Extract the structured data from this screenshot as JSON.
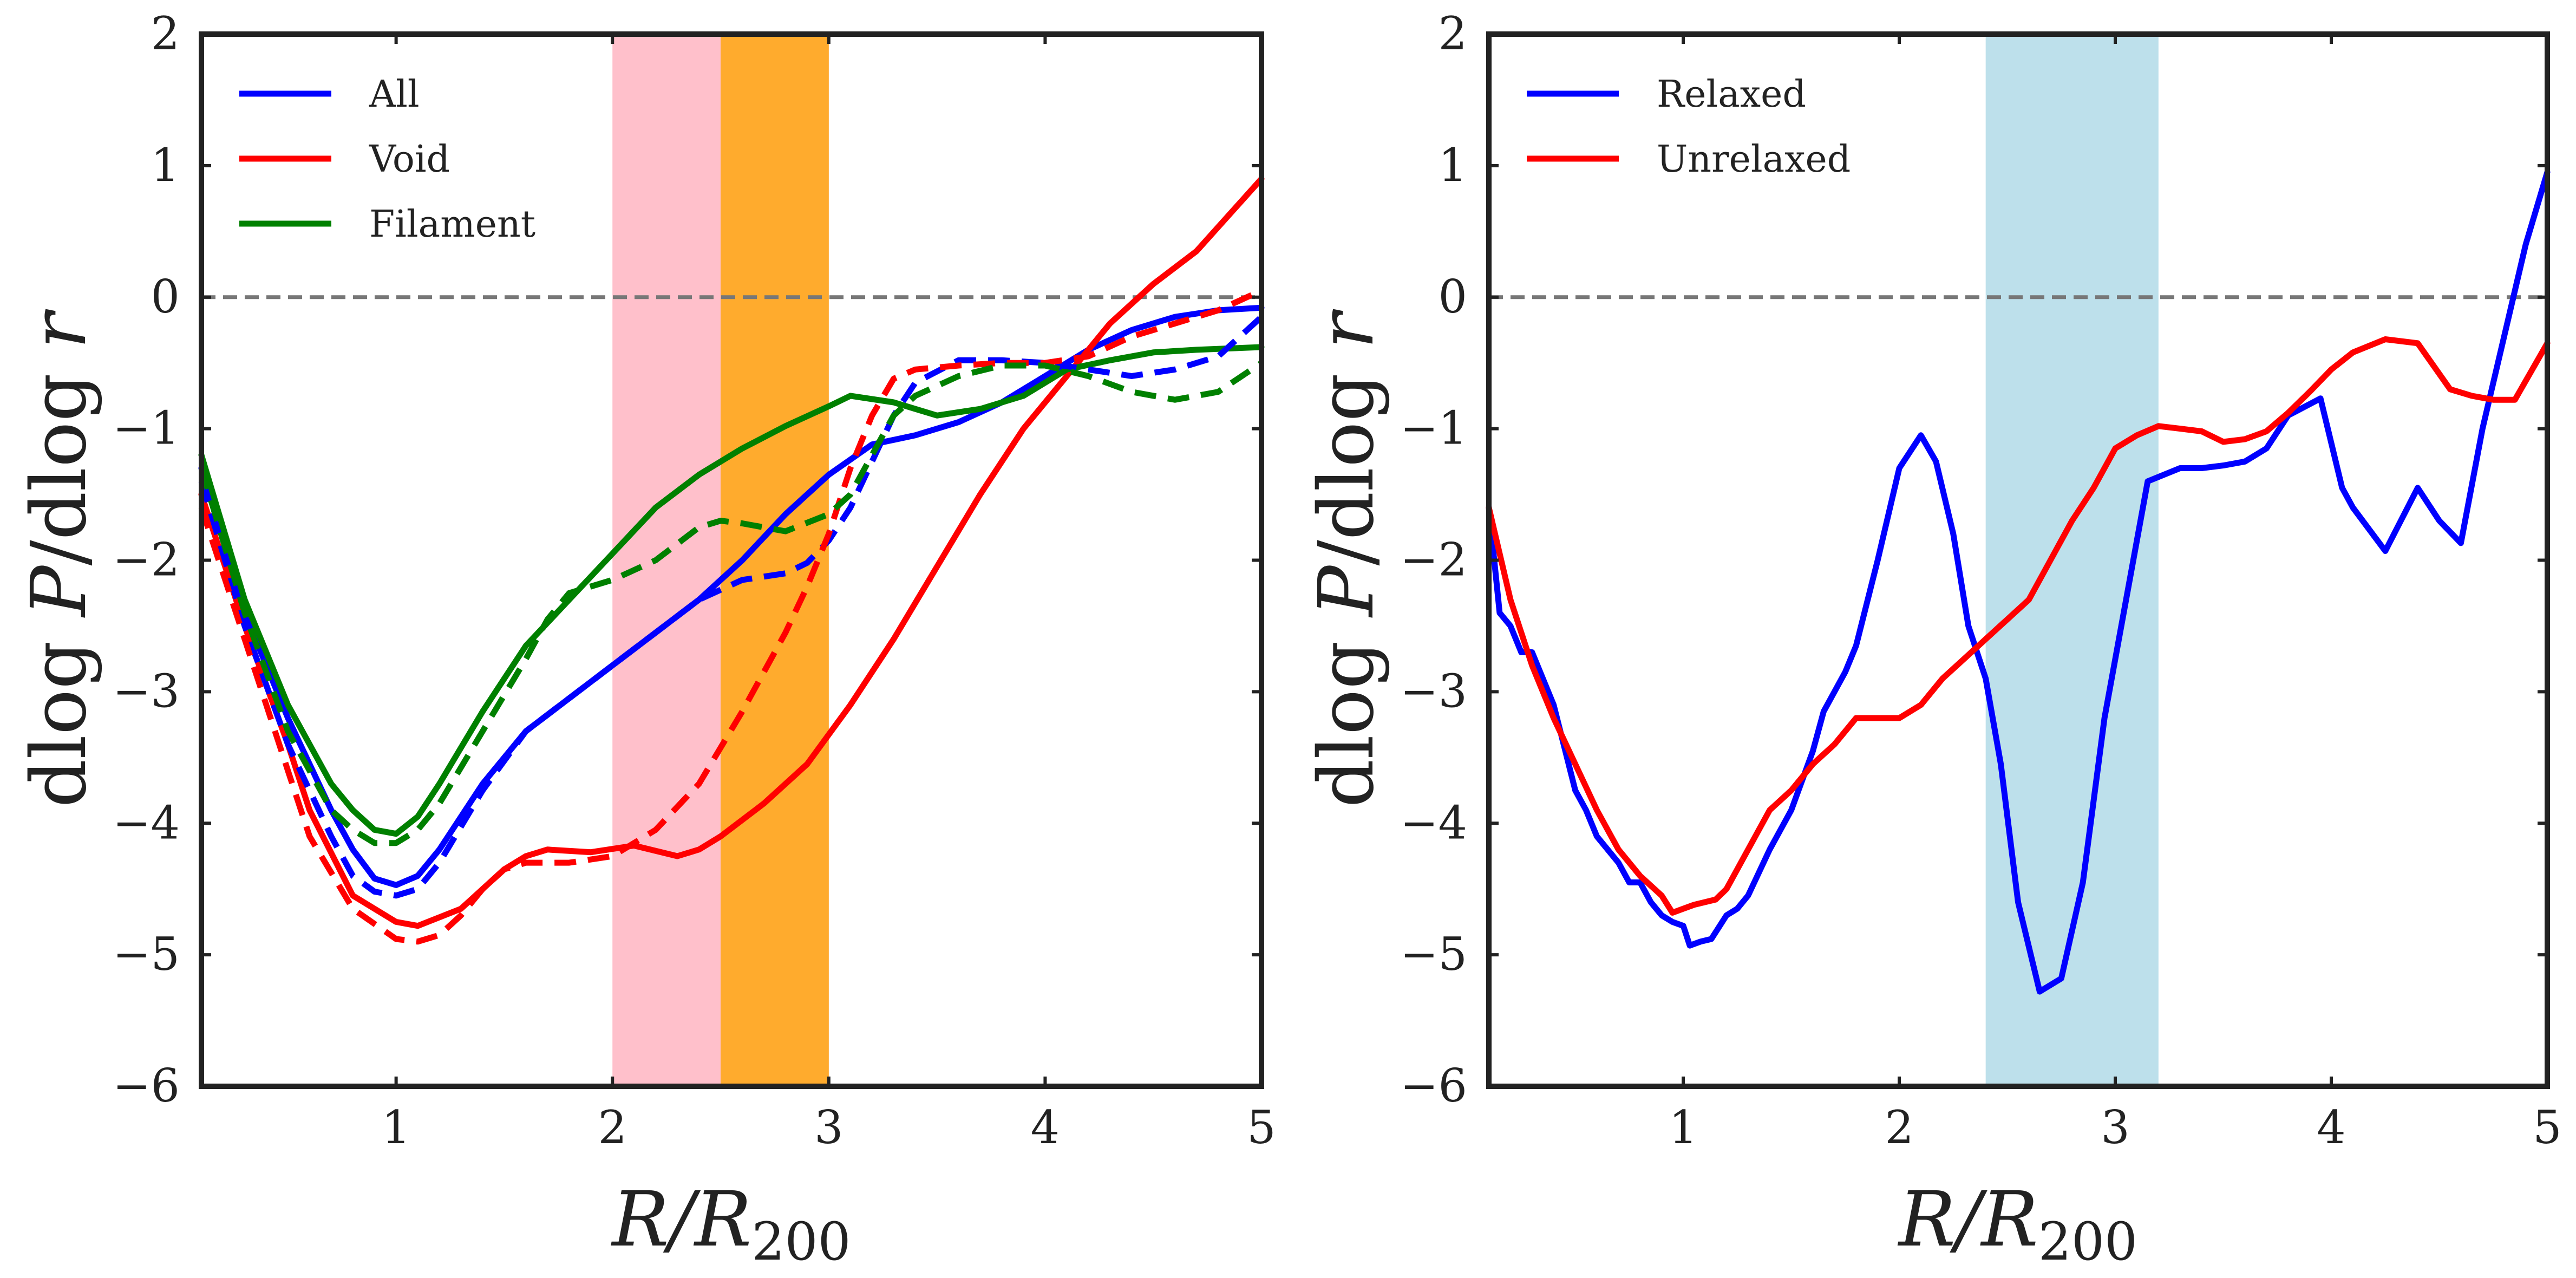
{
  "chart_data": [
    {
      "type": "line",
      "xlim": [
        0.1,
        5
      ],
      "ylim": [
        -6,
        2
      ],
      "xticks": [
        1,
        2,
        3,
        4,
        5
      ],
      "yticks": [
        -6,
        -5,
        -4,
        -3,
        -2,
        -1,
        0,
        1,
        2
      ],
      "xlabel": "R/R200",
      "ylabel": "dlog P/dlog r",
      "ylabel_parts": {
        "a": "dlog ",
        "b": "P",
        "c": "/dlog ",
        "d": "r"
      },
      "xlabel_parts": {
        "a": "R/R",
        "sub": "200"
      },
      "hline": 0,
      "legend_position": "top-left",
      "bands": [
        {
          "x0": 2.0,
          "x1": 3.0,
          "color": "#FFC0CB",
          "opacity": 1.0
        },
        {
          "x0": 2.5,
          "x1": 3.0,
          "color": "#FFA500",
          "opacity": 0.78
        }
      ],
      "series": [
        {
          "name": "All",
          "color": "#0000ff",
          "dashed": false,
          "legend": true,
          "x": [
            0.1,
            0.3,
            0.5,
            0.7,
            0.8,
            0.9,
            1.0,
            1.1,
            1.2,
            1.4,
            1.6,
            1.8,
            2.0,
            2.2,
            2.4,
            2.6,
            2.8,
            3.0,
            3.2,
            3.4,
            3.6,
            3.8,
            4.0,
            4.2,
            4.4,
            4.6,
            4.8,
            5.0
          ],
          "y": [
            -1.3,
            -2.4,
            -3.2,
            -3.9,
            -4.2,
            -4.42,
            -4.47,
            -4.4,
            -4.2,
            -3.7,
            -3.3,
            -3.05,
            -2.8,
            -2.55,
            -2.3,
            -2.0,
            -1.65,
            -1.35,
            -1.12,
            -1.05,
            -0.95,
            -0.8,
            -0.6,
            -0.4,
            -0.25,
            -0.15,
            -0.1,
            -0.08
          ]
        },
        {
          "name": "Void",
          "color": "#ff0000",
          "dashed": false,
          "legend": true,
          "x": [
            0.1,
            0.3,
            0.5,
            0.6,
            0.8,
            1.0,
            1.1,
            1.3,
            1.5,
            1.6,
            1.7,
            1.9,
            2.1,
            2.3,
            2.4,
            2.5,
            2.7,
            2.9,
            3.1,
            3.3,
            3.5,
            3.7,
            3.9,
            4.1,
            4.3,
            4.5,
            4.7,
            5.0
          ],
          "y": [
            -1.5,
            -2.5,
            -3.4,
            -3.9,
            -4.55,
            -4.75,
            -4.78,
            -4.65,
            -4.35,
            -4.25,
            -4.2,
            -4.22,
            -4.17,
            -4.25,
            -4.2,
            -4.1,
            -3.85,
            -3.55,
            -3.1,
            -2.6,
            -2.05,
            -1.5,
            -1.0,
            -0.6,
            -0.2,
            0.1,
            0.35,
            0.9
          ]
        },
        {
          "name": "Filament",
          "color": "#008000",
          "dashed": false,
          "legend": true,
          "x": [
            0.1,
            0.3,
            0.5,
            0.7,
            0.8,
            0.9,
            1.0,
            1.1,
            1.2,
            1.4,
            1.6,
            1.8,
            2.0,
            2.2,
            2.4,
            2.6,
            2.8,
            3.0,
            3.1,
            3.3,
            3.5,
            3.7,
            3.9,
            4.1,
            4.3,
            4.5,
            4.7,
            5.0
          ],
          "y": [
            -1.2,
            -2.3,
            -3.1,
            -3.7,
            -3.9,
            -4.05,
            -4.08,
            -3.95,
            -3.7,
            -3.15,
            -2.65,
            -2.3,
            -1.95,
            -1.6,
            -1.35,
            -1.15,
            -0.98,
            -0.83,
            -0.75,
            -0.8,
            -0.9,
            -0.85,
            -0.75,
            -0.55,
            -0.48,
            -0.42,
            -0.4,
            -0.38
          ]
        },
        {
          "name": "All (dashed)",
          "color": "#0000ff",
          "dashed": true,
          "legend": false,
          "x": [
            0.1,
            0.3,
            0.5,
            0.7,
            0.8,
            0.9,
            1.0,
            1.1,
            1.2,
            1.4,
            1.6,
            1.8,
            2.0,
            2.2,
            2.4,
            2.6,
            2.8,
            2.9,
            3.0,
            3.1,
            3.2,
            3.3,
            3.4,
            3.6,
            3.8,
            4.0,
            4.2,
            4.4,
            4.6,
            4.8,
            5.0
          ],
          "y": [
            -1.4,
            -2.5,
            -3.4,
            -4.1,
            -4.4,
            -4.52,
            -4.55,
            -4.5,
            -4.3,
            -3.75,
            -3.3,
            -3.05,
            -2.8,
            -2.55,
            -2.3,
            -2.15,
            -2.1,
            -2.02,
            -1.85,
            -1.6,
            -1.25,
            -0.9,
            -0.65,
            -0.48,
            -0.48,
            -0.5,
            -0.55,
            -0.6,
            -0.55,
            -0.45,
            -0.15
          ]
        },
        {
          "name": "Void (dashed)",
          "color": "#ff0000",
          "dashed": true,
          "legend": false,
          "x": [
            0.1,
            0.3,
            0.5,
            0.6,
            0.8,
            1.0,
            1.1,
            1.2,
            1.3,
            1.4,
            1.5,
            1.6,
            1.8,
            2.0,
            2.2,
            2.4,
            2.6,
            2.8,
            2.9,
            3.0,
            3.1,
            3.2,
            3.3,
            3.4,
            3.6,
            3.8,
            4.0,
            4.2,
            4.4,
            4.6,
            4.8,
            5.0
          ],
          "y": [
            -1.6,
            -2.6,
            -3.6,
            -4.1,
            -4.65,
            -4.88,
            -4.9,
            -4.85,
            -4.7,
            -4.5,
            -4.35,
            -4.3,
            -4.3,
            -4.25,
            -4.05,
            -3.7,
            -3.15,
            -2.55,
            -2.2,
            -1.8,
            -1.3,
            -0.9,
            -0.62,
            -0.55,
            -0.52,
            -0.5,
            -0.5,
            -0.45,
            -0.3,
            -0.2,
            -0.1,
            0.05
          ]
        },
        {
          "name": "Filament (dashed)",
          "color": "#008000",
          "dashed": true,
          "legend": false,
          "x": [
            0.1,
            0.3,
            0.5,
            0.7,
            0.8,
            0.9,
            1.0,
            1.1,
            1.2,
            1.4,
            1.6,
            1.7,
            1.8,
            2.0,
            2.2,
            2.4,
            2.5,
            2.6,
            2.8,
            3.0,
            3.1,
            3.2,
            3.3,
            3.4,
            3.6,
            3.8,
            4.0,
            4.2,
            4.4,
            4.6,
            4.8,
            5.0
          ],
          "y": [
            -1.3,
            -2.4,
            -3.3,
            -3.9,
            -4.05,
            -4.15,
            -4.15,
            -4.05,
            -3.85,
            -3.3,
            -2.75,
            -2.45,
            -2.25,
            -2.15,
            -2.0,
            -1.75,
            -1.7,
            -1.72,
            -1.78,
            -1.65,
            -1.5,
            -1.2,
            -0.9,
            -0.75,
            -0.6,
            -0.52,
            -0.52,
            -0.6,
            -0.72,
            -0.78,
            -0.72,
            -0.5
          ]
        }
      ]
    },
    {
      "type": "line",
      "xlim": [
        0.1,
        5
      ],
      "ylim": [
        -6,
        2
      ],
      "xticks": [
        1,
        2,
        3,
        4,
        5
      ],
      "yticks": [
        -6,
        -5,
        -4,
        -3,
        -2,
        -1,
        0,
        1,
        2
      ],
      "xlabel": "R/R200",
      "ylabel": "dlog P/dlog r",
      "ylabel_parts": {
        "a": "dlog ",
        "b": "P",
        "c": "/dlog ",
        "d": "r"
      },
      "xlabel_parts": {
        "a": "R/R",
        "sub": "200"
      },
      "hline": 0,
      "legend_position": "top-left",
      "bands": [
        {
          "x0": 2.4,
          "x1": 3.2,
          "color": "#ADD8E6",
          "opacity": 0.8
        }
      ],
      "series": [
        {
          "name": "Relaxed",
          "color": "#0000ff",
          "dashed": false,
          "legend": true,
          "x": [
            0.1,
            0.15,
            0.2,
            0.25,
            0.3,
            0.4,
            0.5,
            0.55,
            0.6,
            0.7,
            0.75,
            0.8,
            0.85,
            0.9,
            0.95,
            1.0,
            1.03,
            1.08,
            1.13,
            1.2,
            1.25,
            1.3,
            1.4,
            1.5,
            1.6,
            1.65,
            1.75,
            1.8,
            1.9,
            2.0,
            2.1,
            2.17,
            2.25,
            2.32,
            2.4,
            2.47,
            2.55,
            2.65,
            2.75,
            2.85,
            2.95,
            3.05,
            3.15,
            3.3,
            3.4,
            3.5,
            3.6,
            3.7,
            3.8,
            3.95,
            4.05,
            4.1,
            4.25,
            4.4,
            4.5,
            4.6,
            4.7,
            4.8,
            4.9,
            5.0
          ],
          "y": [
            -1.6,
            -2.4,
            -2.5,
            -2.7,
            -2.7,
            -3.1,
            -3.75,
            -3.9,
            -4.1,
            -4.3,
            -4.45,
            -4.45,
            -4.6,
            -4.7,
            -4.75,
            -4.78,
            -4.93,
            -4.9,
            -4.88,
            -4.7,
            -4.65,
            -4.55,
            -4.2,
            -3.9,
            -3.45,
            -3.15,
            -2.85,
            -2.65,
            -2.0,
            -1.3,
            -1.05,
            -1.25,
            -1.8,
            -2.5,
            -2.9,
            -3.55,
            -4.6,
            -5.28,
            -5.18,
            -4.45,
            -3.2,
            -2.3,
            -1.4,
            -1.3,
            -1.3,
            -1.28,
            -1.25,
            -1.15,
            -0.9,
            -0.77,
            -1.45,
            -1.6,
            -1.93,
            -1.45,
            -1.7,
            -1.87,
            -1.0,
            -0.3,
            0.4,
            0.95
          ]
        },
        {
          "name": "Unrelaxed",
          "color": "#ff0000",
          "dashed": false,
          "legend": true,
          "x": [
            0.1,
            0.2,
            0.3,
            0.4,
            0.5,
            0.6,
            0.7,
            0.8,
            0.9,
            0.95,
            1.0,
            1.05,
            1.15,
            1.2,
            1.3,
            1.4,
            1.5,
            1.6,
            1.7,
            1.8,
            2.0,
            2.1,
            2.2,
            2.3,
            2.4,
            2.5,
            2.6,
            2.7,
            2.8,
            2.9,
            3.0,
            3.1,
            3.2,
            3.3,
            3.4,
            3.5,
            3.6,
            3.7,
            3.8,
            3.9,
            4.0,
            4.1,
            4.25,
            4.4,
            4.55,
            4.65,
            4.75,
            4.85,
            5.0
          ],
          "y": [
            -1.6,
            -2.3,
            -2.8,
            -3.2,
            -3.55,
            -3.9,
            -4.2,
            -4.4,
            -4.55,
            -4.68,
            -4.65,
            -4.62,
            -4.58,
            -4.5,
            -4.2,
            -3.9,
            -3.75,
            -3.55,
            -3.4,
            -3.2,
            -3.2,
            -3.1,
            -2.9,
            -2.75,
            -2.6,
            -2.45,
            -2.3,
            -2.0,
            -1.7,
            -1.45,
            -1.15,
            -1.05,
            -0.98,
            -1.0,
            -1.02,
            -1.1,
            -1.08,
            -1.02,
            -0.88,
            -0.72,
            -0.55,
            -0.42,
            -0.32,
            -0.35,
            -0.7,
            -0.75,
            -0.78,
            -0.78,
            -0.35
          ]
        }
      ]
    }
  ]
}
